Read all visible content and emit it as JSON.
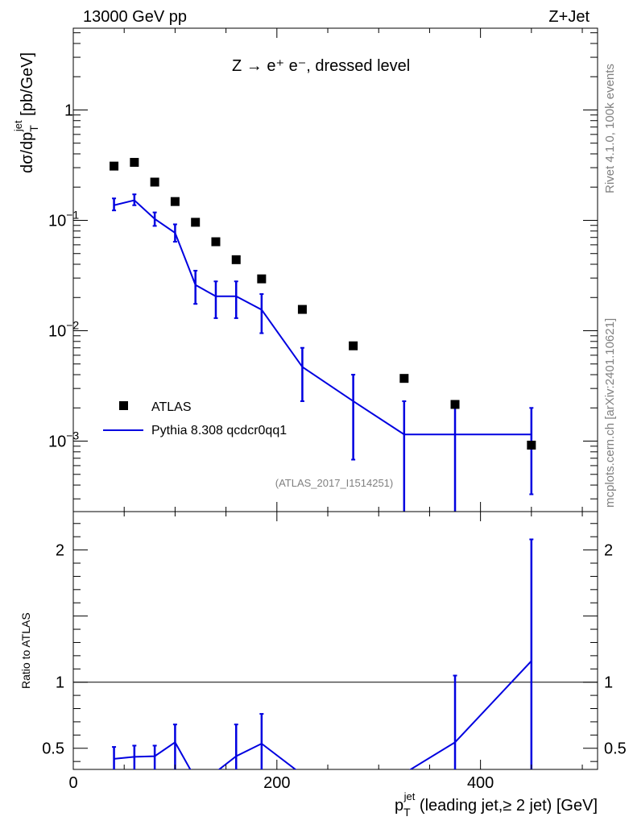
{
  "chart_data": {
    "type": "scatter",
    "header": {
      "left": "13000 GeV pp",
      "right": "Z+Jet"
    },
    "annotation": "Z → e⁺ e⁻, dressed level",
    "analysis_label": "(ATLAS_2017_I1514251)",
    "side_labels": {
      "rivet": "Rivet 4.1.0,  100k events",
      "source": "mcplots.cern.ch [arXiv:2401.10621]"
    },
    "xlabel": {
      "symbol": "p",
      "sup": "jet",
      "sub": "T",
      "rest": " (leading jet,≥ 2 jet) [GeV]"
    },
    "xlim": [
      0,
      515
    ],
    "x_ticks": [
      0,
      200,
      400
    ],
    "upper": {
      "ylabel": {
        "main": "dσ/dp",
        "sup": "jet",
        "sub": "T",
        "unit": " [pb/GeV]"
      },
      "yscale": "log",
      "ylim": [
        0.00023,
        5.5
      ],
      "y_ticks": [
        {
          "value": 0.001,
          "mantissa": "10",
          "exp": "−3"
        },
        {
          "value": 0.01,
          "mantissa": "10",
          "exp": "−2"
        },
        {
          "value": 0.1,
          "mantissa": "10",
          "exp": "−1"
        },
        {
          "value": 1,
          "mantissa": "1",
          "exp": ""
        }
      ],
      "series": [
        {
          "name": "ATLAS",
          "style": "markers",
          "color": "#000000",
          "x": [
            40,
            60,
            80,
            100,
            120,
            140,
            160,
            185,
            225,
            275,
            325,
            375,
            450
          ],
          "y": [
            0.31,
            0.335,
            0.222,
            0.148,
            0.096,
            0.064,
            0.044,
            0.0295,
            0.0156,
            0.0073,
            0.0037,
            0.00215,
            0.00092
          ]
        },
        {
          "name": "Pythia 8.308 qcdcr0qq1",
          "style": "line",
          "color": "#0000e0",
          "x": [
            40,
            60,
            80,
            100,
            120,
            140,
            160,
            185,
            225,
            275,
            325,
            375,
            450
          ],
          "y": [
            0.137,
            0.152,
            0.103,
            0.077,
            0.026,
            0.0205,
            0.0205,
            0.0155,
            0.0047,
            0.0023,
            0.00115,
            0.00115,
            0.00115
          ],
          "err_low": [
            0.123,
            0.137,
            0.089,
            0.064,
            0.0175,
            0.013,
            0.013,
            0.0095,
            0.0023,
            0.00068,
            0.0001,
            0.0001,
            0.00033
          ],
          "err_high": [
            0.158,
            0.172,
            0.118,
            0.092,
            0.035,
            0.028,
            0.028,
            0.0215,
            0.007,
            0.004,
            0.0023,
            0.0023,
            0.002
          ]
        }
      ]
    },
    "lower": {
      "ylabel": "Ratio to ATLAS",
      "ylim": [
        0.34,
        2.29
      ],
      "y_ticks": [
        0.5,
        1,
        2
      ],
      "reference": 1,
      "series": {
        "name": "Pythia 8.308 qcdcr0qq1",
        "color": "#0000e0",
        "x": [
          40,
          60,
          80,
          100,
          120,
          140,
          160,
          185,
          225,
          275,
          325,
          375,
          450
        ],
        "y": [
          0.42,
          0.435,
          0.44,
          0.545,
          0.27,
          0.32,
          0.44,
          0.535,
          0.3,
          0.31,
          0.31,
          0.545,
          1.16
        ],
        "err_low": [
          0.33,
          0.33,
          0.33,
          0.3,
          null,
          null,
          0.2,
          0.3,
          null,
          null,
          null,
          0.0,
          0.25
        ],
        "err_high": [
          0.51,
          0.52,
          0.52,
          0.68,
          null,
          null,
          0.68,
          0.76,
          null,
          null,
          null,
          1.05,
          2.08
        ]
      }
    }
  }
}
